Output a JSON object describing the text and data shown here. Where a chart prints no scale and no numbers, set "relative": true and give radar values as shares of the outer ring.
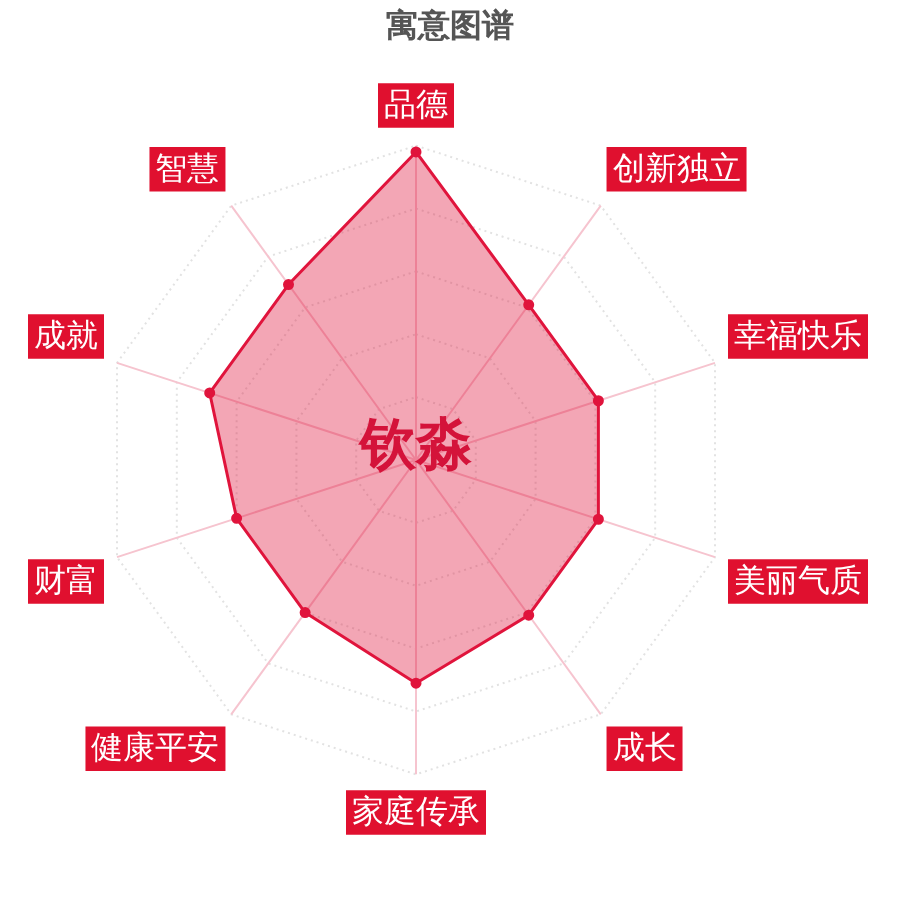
{
  "chart_data": {
    "type": "radar",
    "title": "寓意图谱",
    "annotations": [
      "钦淼"
    ],
    "categories": [
      "品德",
      "创新独立",
      "幸福快乐",
      "美丽气质",
      "成长",
      "家庭传承",
      "健康平安",
      "财富",
      "成就",
      "智慧"
    ],
    "relative": true,
    "series": [
      {
        "color": "#e0143c",
        "values": [
          0.98,
          0.61,
          0.61,
          0.61,
          0.61,
          0.71,
          0.6,
          0.6,
          0.69,
          0.69
        ]
      }
    ],
    "grid": true,
    "legend": false,
    "marker": "circle"
  }
}
